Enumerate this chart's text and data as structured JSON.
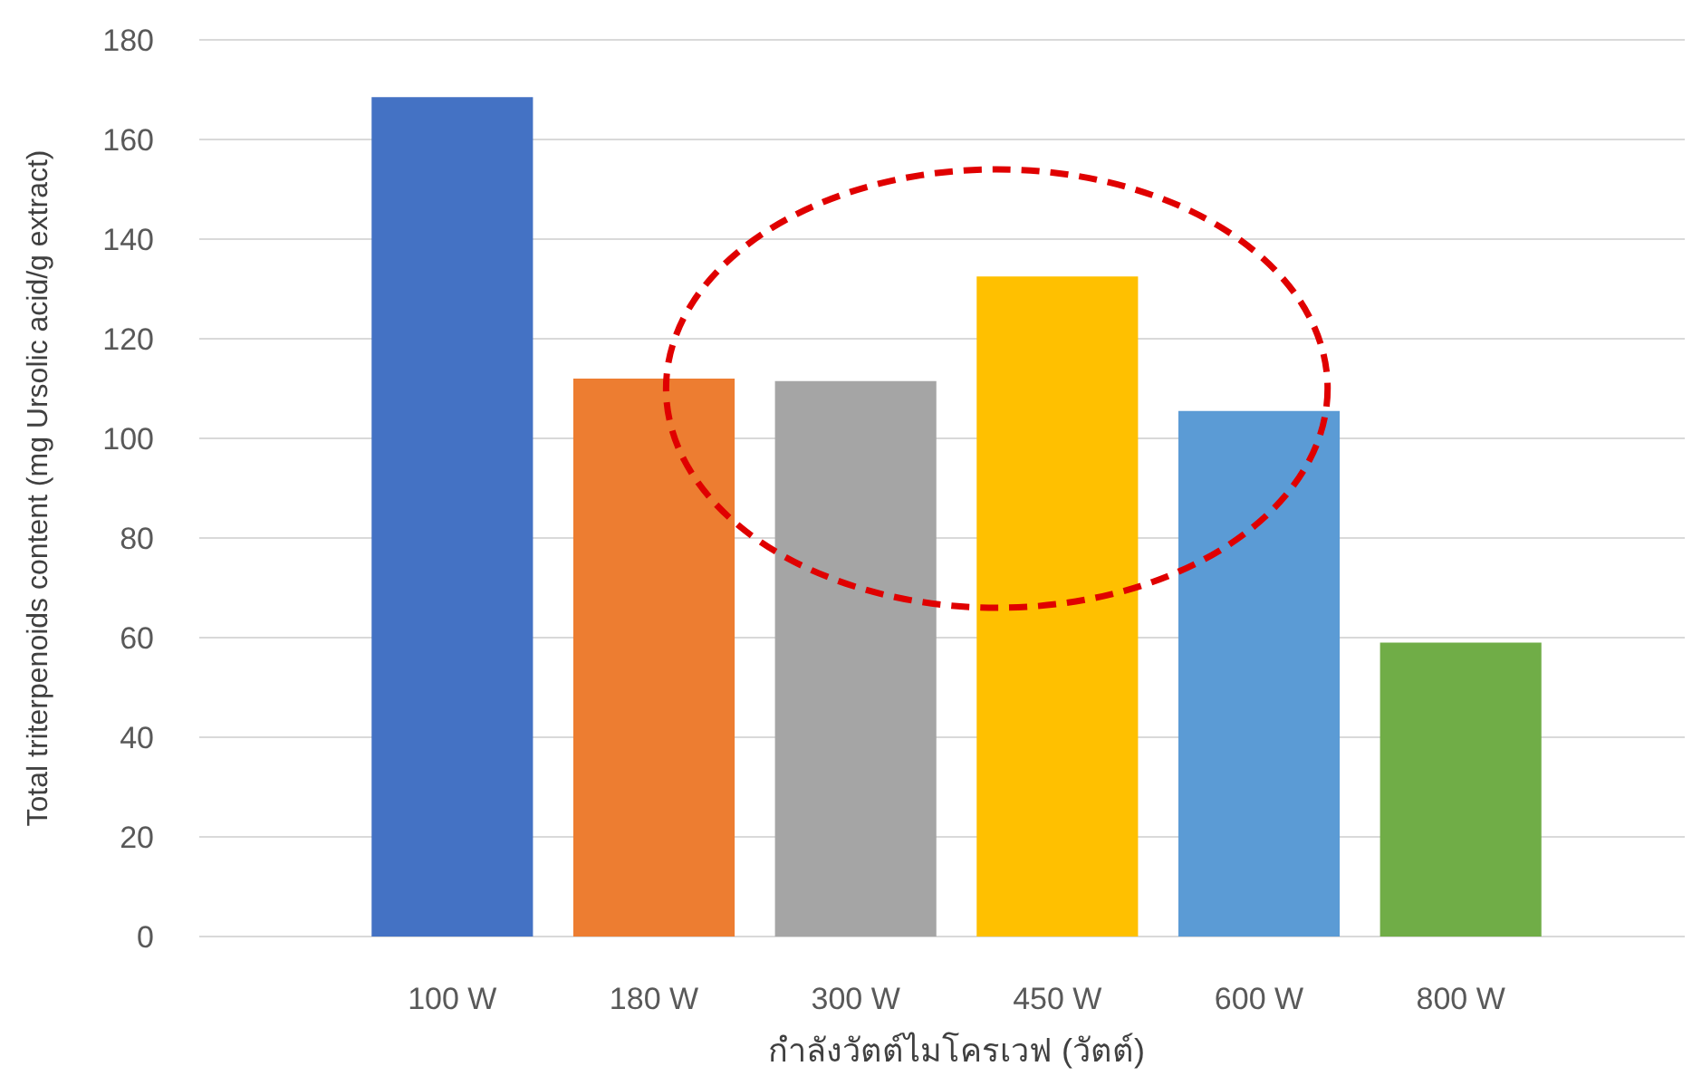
{
  "chart_data": {
    "type": "bar",
    "xlabel": "กำลังวัตต์ไมโครเวฟ (วัตต์)",
    "ylabel": "Total triterpenoids content (mg Ursolic acid/g extract)",
    "categories": [
      "100 W",
      "180 W",
      "300 W",
      "450 W",
      "600 W",
      "800 W"
    ],
    "values": [
      168.5,
      112,
      111.5,
      132.5,
      105.5,
      59
    ],
    "colors": [
      "#4472c4",
      "#ed7d31",
      "#a5a5a5",
      "#ffc000",
      "#5b9bd5",
      "#70ad47"
    ],
    "ylim": [
      0,
      180
    ],
    "yticks": [
      0,
      20,
      40,
      60,
      80,
      100,
      120,
      140,
      160,
      180
    ],
    "grid": "y"
  }
}
